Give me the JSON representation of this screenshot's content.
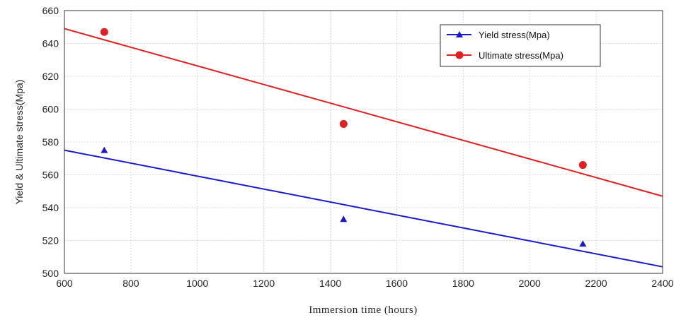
{
  "chart_data": {
    "type": "scatter",
    "title": "",
    "xlabel": "Immersion time (hours)",
    "ylabel": "Yield & Ultimate stress(Mpa)",
    "xlim": [
      600,
      2400
    ],
    "ylim": [
      500,
      660
    ],
    "x_ticks": [
      "600",
      "800",
      "1000",
      "1200",
      "1400",
      "1600",
      "1800",
      "2000",
      "2200",
      "2400"
    ],
    "y_ticks": [
      "500",
      "520",
      "540",
      "560",
      "580",
      "600",
      "620",
      "640",
      "660"
    ],
    "grid": true,
    "legend_position": "top-right",
    "series": [
      {
        "name": "Yield stress(Mpa)",
        "marker": "triangle",
        "color": "#1a1acc",
        "x": [
          720,
          1440,
          2160
        ],
        "y": [
          575,
          533,
          518
        ],
        "fit_line": {
          "x": [
            600,
            2400
          ],
          "y": [
            575,
            504
          ]
        }
      },
      {
        "name": "Ultimate stress(Mpa)",
        "marker": "circle",
        "color": "#e02020",
        "x": [
          720,
          1440,
          2160
        ],
        "y": [
          647,
          591,
          566
        ],
        "fit_line": {
          "x": [
            600,
            2400
          ],
          "y": [
            649,
            547
          ]
        }
      }
    ]
  }
}
